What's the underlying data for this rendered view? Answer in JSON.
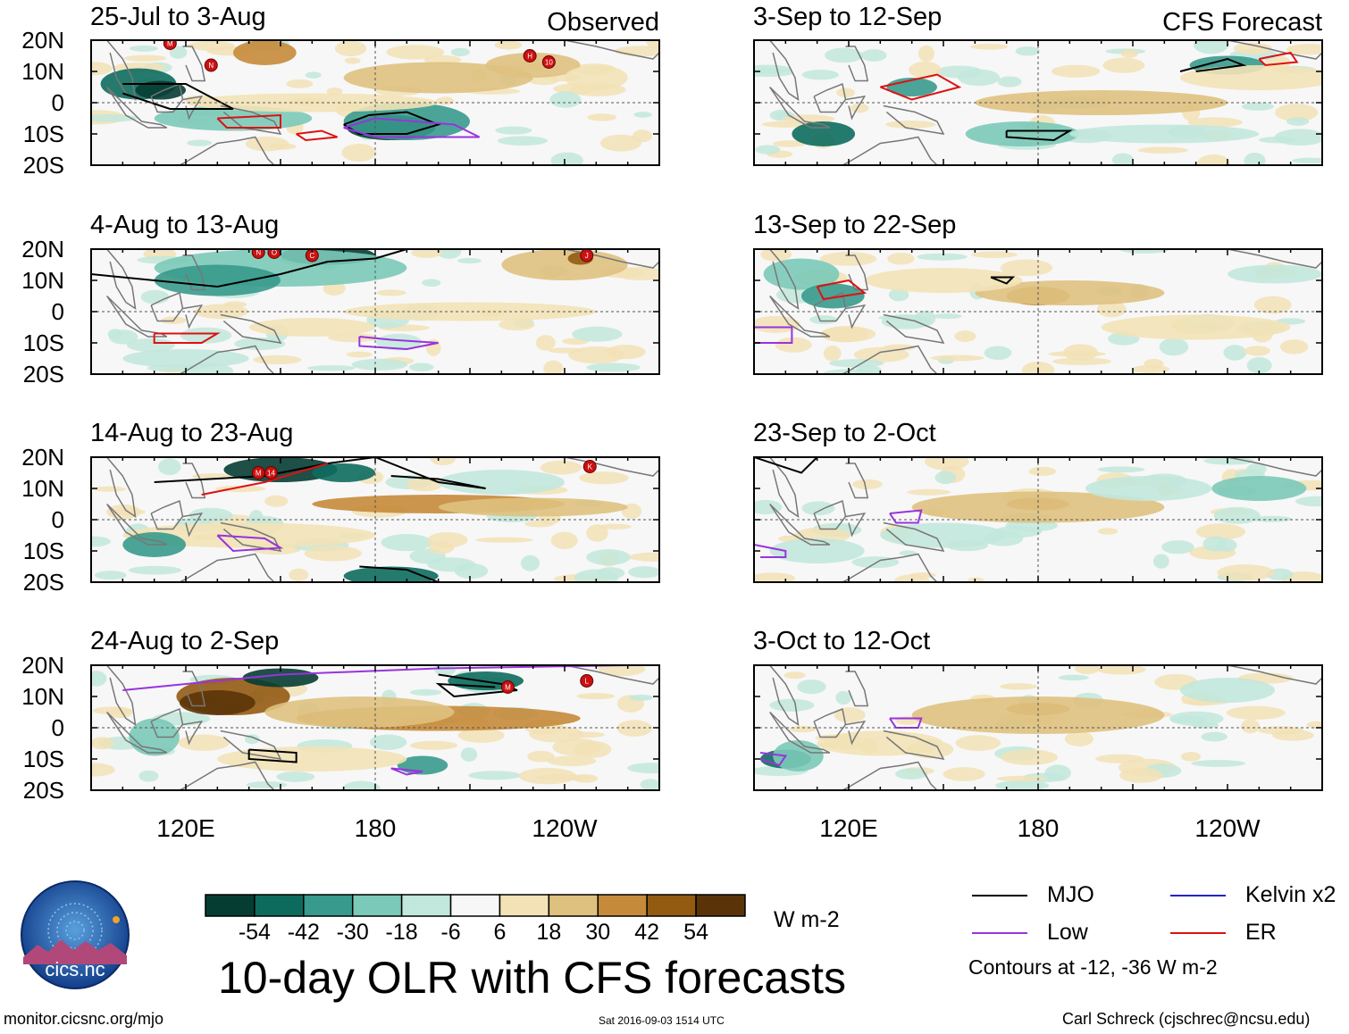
{
  "chart_data": {
    "type": "heatmap",
    "title": "10-day OLR with CFS forecasts",
    "units": "W m-2",
    "columns": [
      {
        "label": "Observed"
      },
      {
        "label": "CFS Forecast"
      }
    ],
    "panels": [
      {
        "period": "25-Jul to 3-Aug",
        "source": "Observed"
      },
      {
        "period": "4-Aug to 13-Aug",
        "source": "Observed"
      },
      {
        "period": "14-Aug to 23-Aug",
        "source": "Observed"
      },
      {
        "period": "24-Aug to 2-Sep",
        "source": "Observed"
      },
      {
        "period": "3-Sep to 12-Sep",
        "source": "CFS Forecast"
      },
      {
        "period": "13-Sep to 22-Sep",
        "source": "CFS Forecast"
      },
      {
        "period": "23-Sep to 2-Oct",
        "source": "CFS Forecast"
      },
      {
        "period": "3-Oct to 12-Oct",
        "source": "CFS Forecast"
      }
    ],
    "y_ticks": [
      "20N",
      "10N",
      "0",
      "10S",
      "20S"
    ],
    "x_ticks": [
      "120E",
      "180",
      "120W"
    ],
    "ylim": [
      -20,
      20
    ],
    "xlim_lon_east": [
      90,
      270
    ],
    "colorbar": {
      "ticks": [
        "-54",
        "-42",
        "-30",
        "-18",
        "-6",
        "6",
        "18",
        "30",
        "42",
        "54"
      ],
      "colors": [
        "#063d33",
        "#0d6b5e",
        "#379a8c",
        "#7bc9b8",
        "#c2e7dc",
        "#f7f7f7",
        "#f2e2b6",
        "#dfc17f",
        "#c58a3a",
        "#935a12",
        "#5a3408"
      ]
    },
    "legend": [
      {
        "label": "MJO",
        "color": "#000000"
      },
      {
        "label": "Kelvin x2",
        "color": "#2222cc"
      },
      {
        "label": "Low",
        "color": "#9933dd"
      },
      {
        "label": "ER",
        "color": "#dd1111"
      }
    ],
    "contour_note": "Contours at -12, -36 W m-2",
    "storm_markers": [
      {
        "panel": 0,
        "labels": [
          "M",
          "N",
          "H",
          "10"
        ]
      },
      {
        "panel": 1,
        "labels": [
          "N",
          "O",
          "C",
          "J"
        ]
      },
      {
        "panel": 2,
        "labels": [
          "M",
          "14",
          "K"
        ]
      },
      {
        "panel": 3,
        "labels": [
          "M",
          "L"
        ]
      }
    ]
  },
  "logo": {
    "text": "cics.nc",
    "ring_text": "Cooperative Institute for Climate and Satellites"
  },
  "footer": {
    "left": "monitor.cicsnc.org/mjo",
    "middle": "Sat 2016-09-03 1514 UTC",
    "right": "Carl Schreck (cjschrec@ncsu.edu)"
  }
}
